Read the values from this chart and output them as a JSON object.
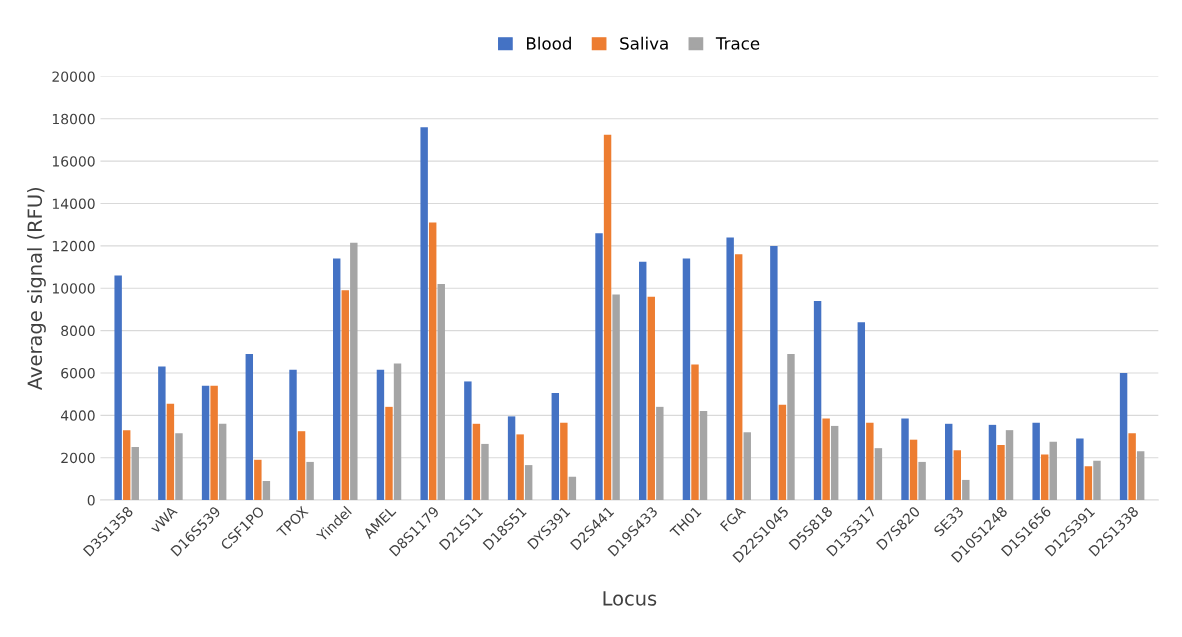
{
  "chart_data": {
    "type": "bar",
    "xlabel": "Locus",
    "ylabel": "Average signal (RFU)",
    "categories": [
      "D3S1358",
      "vWA",
      "D16S539",
      "CSF1PO",
      "TPOX",
      "Yindel",
      "AMEL",
      "D8S1179",
      "D21S11",
      "D18S51",
      "DYS391",
      "D2S441",
      "D19S433",
      "TH01",
      "FGA",
      "D22S1045",
      "D5S818",
      "D13S317",
      "D7S820",
      "SE33",
      "D10S1248",
      "D1S1656",
      "D12S391",
      "D2S1338"
    ],
    "series": [
      {
        "name": "Blood",
        "color": "#4472c4",
        "values": [
          10600,
          6300,
          5400,
          6900,
          6150,
          11400,
          6150,
          17600,
          5600,
          3950,
          5050,
          12600,
          11250,
          11400,
          12400,
          12000,
          9400,
          8400,
          3850,
          3600,
          3550,
          3650,
          2900,
          6000
        ]
      },
      {
        "name": "Saliva",
        "color": "#ed7d31",
        "values": [
          3300,
          4550,
          5400,
          1900,
          3250,
          9900,
          4400,
          13100,
          3600,
          3100,
          3650,
          17250,
          9600,
          6400,
          11600,
          4500,
          3850,
          3650,
          2850,
          2350,
          2600,
          2150,
          1600,
          3150
        ]
      },
      {
        "name": "Trace",
        "color": "#a5a5a5",
        "values": [
          2500,
          3150,
          3600,
          900,
          1800,
          12150,
          6450,
          10200,
          2650,
          1650,
          1100,
          9700,
          4400,
          4200,
          3200,
          6900,
          3500,
          2450,
          1800,
          950,
          3300,
          2750,
          1850,
          2300
        ]
      }
    ],
    "ylim": [
      0,
      20000
    ],
    "yticks": [
      0,
      2000,
      4000,
      6000,
      8000,
      10000,
      12000,
      14000,
      16000,
      18000,
      20000
    ],
    "grid": "y",
    "legend": "top"
  }
}
